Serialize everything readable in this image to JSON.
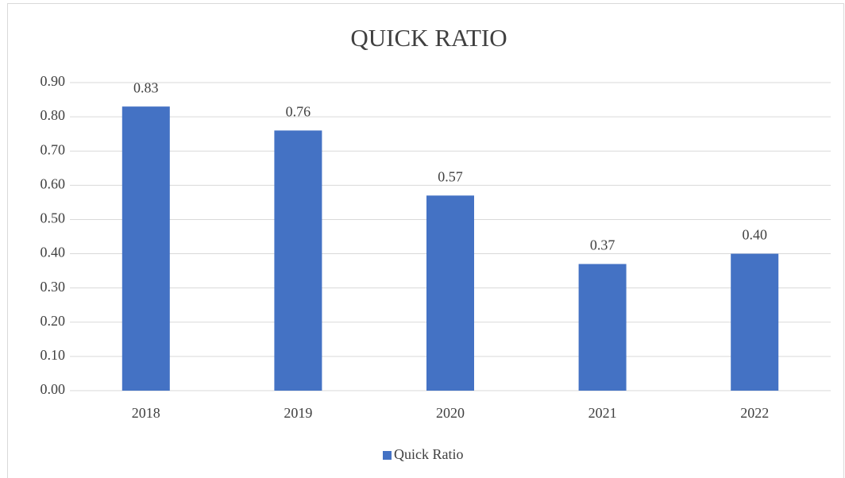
{
  "chart_data": {
    "type": "bar",
    "title": "QUICK RATIO",
    "categories": [
      "2018",
      "2019",
      "2020",
      "2021",
      "2022"
    ],
    "series": [
      {
        "name": "Quick Ratio",
        "color": "#4472c4",
        "values": [
          0.83,
          0.76,
          0.57,
          0.37,
          0.4
        ],
        "value_labels": [
          "0.83",
          "0.76",
          "0.57",
          "0.37",
          "0.40"
        ]
      }
    ],
    "ylim": [
      0,
      0.9
    ],
    "yticks": [
      {
        "value": 0,
        "label": "0.00"
      },
      {
        "value": 0.1,
        "label": "0.10"
      },
      {
        "value": 0.2,
        "label": "0.20"
      },
      {
        "value": 0.3,
        "label": "0.30"
      },
      {
        "value": 0.4,
        "label": "0.40"
      },
      {
        "value": 0.5,
        "label": "0.50"
      },
      {
        "value": 0.6,
        "label": "0.60"
      },
      {
        "value": 0.7,
        "label": "0.70"
      },
      {
        "value": 0.8,
        "label": "0.80"
      },
      {
        "value": 0.9,
        "label": "0.90"
      }
    ],
    "grid": true,
    "legend": "bottom"
  }
}
